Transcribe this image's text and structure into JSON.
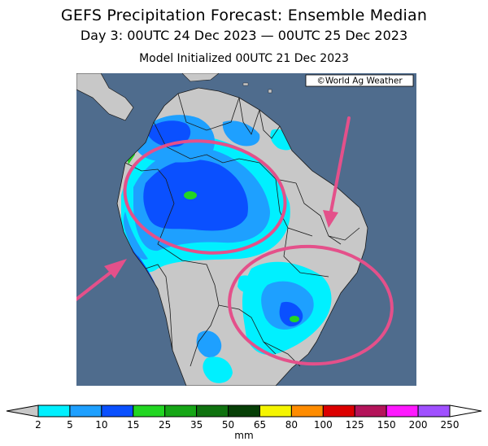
{
  "header": {
    "title": "GEFS Precipitation Forecast: Ensemble Median",
    "subtitle": "Day 3: 00UTC 24 Dec 2023 — 00UTC 25 Dec 2023",
    "init": "Model Initialized 00UTC 21 Dec 2023"
  },
  "map": {
    "copyright": "©World Ag Weather",
    "colors": {
      "ocean": "#4f6c8d",
      "land": "#c8c8c8",
      "border": "#1a1a1a",
      "annotation": "#e4508a"
    },
    "annotations": {
      "ellipses": [
        "north-ellipse",
        "south-ellipse"
      ],
      "arrows": [
        "arrow-southwest",
        "arrow-north"
      ]
    }
  },
  "legend": {
    "unit": "mm",
    "ticks": [
      "2",
      "5",
      "10",
      "15",
      "25",
      "35",
      "50",
      "65",
      "80",
      "100",
      "125",
      "150",
      "200",
      "250"
    ],
    "colors": [
      "#00f0ff",
      "#1ea0ff",
      "#0a50ff",
      "#22d622",
      "#16a616",
      "#0f720f",
      "#063f06",
      "#f5f500",
      "#ff8c00",
      "#dc0000",
      "#b4145a",
      "#ff19ff",
      "#a050ff"
    ]
  }
}
